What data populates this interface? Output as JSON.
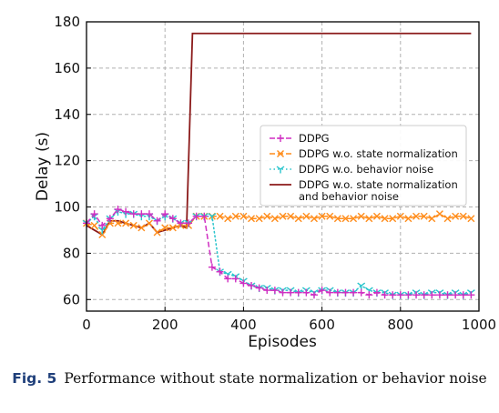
{
  "chart_data": {
    "type": "line",
    "xlabel": "Episodes",
    "ylabel": "Delay (s)",
    "xlim": [
      0,
      1000
    ],
    "ylim": [
      55,
      180
    ],
    "xticks": [
      0,
      200,
      400,
      600,
      800,
      1000
    ],
    "yticks": [
      60,
      80,
      100,
      120,
      140,
      160,
      180
    ],
    "grid": true,
    "legend_position": "center-right",
    "series": [
      {
        "name": "DDPG",
        "color": "#d02fc2",
        "linestyle": "dashed",
        "marker": "plus",
        "x": [
          0,
          20,
          40,
          60,
          80,
          100,
          120,
          140,
          160,
          180,
          200,
          220,
          240,
          260,
          280,
          300,
          320,
          340,
          360,
          380,
          400,
          420,
          440,
          460,
          480,
          500,
          520,
          540,
          560,
          580,
          600,
          620,
          640,
          660,
          680,
          700,
          720,
          740,
          760,
          780,
          800,
          820,
          840,
          860,
          880,
          900,
          920,
          940,
          960,
          980
        ],
        "y": [
          93,
          97,
          92,
          95,
          99,
          98,
          97,
          97,
          97,
          94,
          97,
          95,
          93,
          93,
          96,
          96,
          74,
          72,
          69,
          69,
          67,
          66,
          65,
          64,
          64,
          63,
          63,
          63,
          63,
          62,
          64,
          63,
          63,
          63,
          63,
          63,
          62,
          63,
          62,
          62,
          62,
          62,
          62,
          62,
          62,
          62,
          62,
          62,
          62,
          62
        ]
      },
      {
        "name": "DDPG w.o. state normalization",
        "color": "#ff8c1a",
        "linestyle": "dashed",
        "marker": "x",
        "x": [
          0,
          20,
          40,
          60,
          80,
          100,
          120,
          140,
          160,
          180,
          200,
          220,
          240,
          260,
          280,
          300,
          320,
          340,
          360,
          380,
          400,
          420,
          440,
          460,
          480,
          500,
          520,
          540,
          560,
          580,
          600,
          620,
          640,
          660,
          680,
          700,
          720,
          740,
          760,
          780,
          800,
          820,
          840,
          860,
          880,
          900,
          920,
          940,
          960,
          980
        ],
        "y": [
          93,
          92,
          88,
          93,
          93,
          93,
          92,
          91,
          93,
          89,
          91,
          91,
          92,
          92,
          96,
          96,
          96,
          96,
          95,
          96,
          96,
          95,
          95,
          96,
          95,
          96,
          96,
          95,
          96,
          95,
          96,
          96,
          95,
          95,
          95,
          96,
          95,
          96,
          95,
          95,
          96,
          95,
          96,
          96,
          95,
          97,
          95,
          96,
          96,
          95
        ]
      },
      {
        "name": "DDPG w.o. behavior noise",
        "color": "#28c4cc",
        "linestyle": "dotted",
        "marker": "tri_down",
        "x": [
          0,
          20,
          40,
          60,
          80,
          100,
          120,
          140,
          160,
          180,
          200,
          220,
          240,
          260,
          280,
          300,
          320,
          340,
          360,
          380,
          400,
          420,
          440,
          460,
          480,
          500,
          520,
          540,
          560,
          580,
          600,
          620,
          640,
          660,
          680,
          700,
          720,
          740,
          760,
          780,
          800,
          820,
          840,
          860,
          880,
          900,
          920,
          940,
          960,
          980
        ],
        "y": [
          93,
          96,
          90,
          95,
          98,
          97,
          97,
          96,
          96,
          94,
          96,
          95,
          93,
          93,
          96,
          96,
          96,
          72,
          71,
          70,
          68,
          66,
          65,
          65,
          64,
          64,
          64,
          63,
          64,
          63,
          64,
          64,
          63,
          63,
          63,
          66,
          64,
          63,
          63,
          62,
          62,
          62,
          63,
          62,
          63,
          63,
          62,
          63,
          62,
          63
        ]
      },
      {
        "name": "DDPG w.o. state normalization and behavior noise",
        "color": "#8b1a1a",
        "linestyle": "solid",
        "marker": "none",
        "x": [
          0,
          20,
          40,
          60,
          80,
          100,
          120,
          140,
          160,
          180,
          200,
          220,
          240,
          255,
          270,
          280,
          300,
          400,
          500,
          600,
          700,
          800,
          900,
          980
        ],
        "y": [
          92,
          90,
          88,
          94,
          94,
          93,
          92,
          91,
          93,
          89,
          90,
          91,
          92,
          91,
          175,
          175,
          175,
          175,
          175,
          175,
          175,
          175,
          175,
          175
        ]
      }
    ]
  },
  "legend": {
    "items": [
      {
        "label_lines": [
          "DDPG"
        ]
      },
      {
        "label_lines": [
          "DDPG w.o. state normalization"
        ]
      },
      {
        "label_lines": [
          "DDPG w.o. behavior noise"
        ]
      },
      {
        "label_lines": [
          "DDPG w.o. state normalization",
          "and behavior noise"
        ]
      }
    ]
  },
  "caption": {
    "fig_label": "Fig. 5",
    "text": "Performance without state normalization or behavior noise"
  }
}
